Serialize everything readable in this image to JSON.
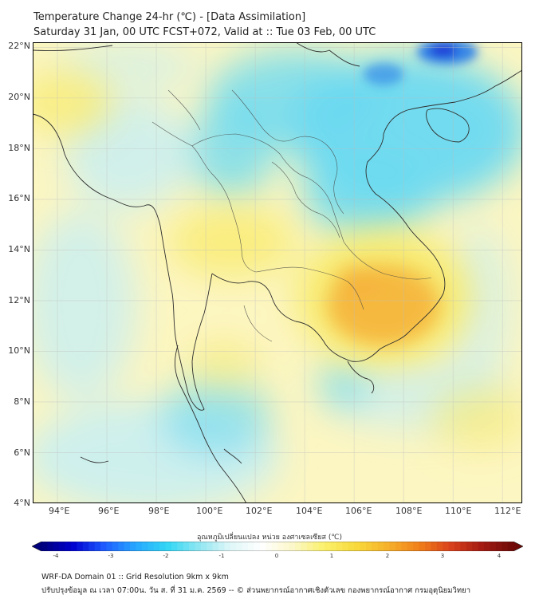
{
  "title": {
    "line1": "Temperature Change 24-hr (℃) - [Data Assimilation]",
    "line2": "Saturday 31 Jan, 00 UTC FCST+072, Valid at :: Tue 03 Feb, 00 UTC"
  },
  "axes": {
    "x_ticks": [
      "94°E",
      "96°E",
      "98°E",
      "100°E",
      "102°E",
      "104°E",
      "106°E",
      "108°E",
      "110°E",
      "112°E"
    ],
    "y_ticks": [
      "22°N",
      "20°N",
      "18°N",
      "16°N",
      "14°N",
      "12°N",
      "10°N",
      "8°N",
      "6°N",
      "4°N"
    ]
  },
  "colorbar": {
    "title": "อุณหภูมิเปลี่ยนแปลง หน่วย องศาเซลเซียส (℃)",
    "ticks": [
      "-4",
      "-3",
      "-2",
      "-1",
      "0",
      "1",
      "2",
      "3",
      "4"
    ],
    "colors": [
      "#00007a",
      "#0000d0",
      "#1e5cff",
      "#27a8ff",
      "#32d6f4",
      "#8fe6f2",
      "#dff6f7",
      "#ffffff",
      "#fbf7c8",
      "#fbf06a",
      "#f8d93a",
      "#f6b12b",
      "#f07f1a",
      "#d9411c",
      "#a31a12",
      "#6e0a08"
    ]
  },
  "map": {
    "colors": {
      "base": "#fcf6c2",
      "cyan": "#6bd9f1",
      "light_cyan": "#c6eef5",
      "yellow": "#f8ea6a",
      "orange": "#f5b43b",
      "blue": "#2a7fe8",
      "dark_blue": "#1b33d4"
    }
  },
  "footer": {
    "line1": "WRF-DA Domain 01 :: Grid Resolution 9km x 9km",
    "line2": "ปรับปรุงข้อมูล ณ เวลา 07:00น. วัน ส. ที่ 31 ม.ค. 2569 -- © ส่วนพยากรณ์อากาศเชิงตัวเลข กองพยากรณ์อากาศ กรมอุตุนิยมวิทยา"
  }
}
